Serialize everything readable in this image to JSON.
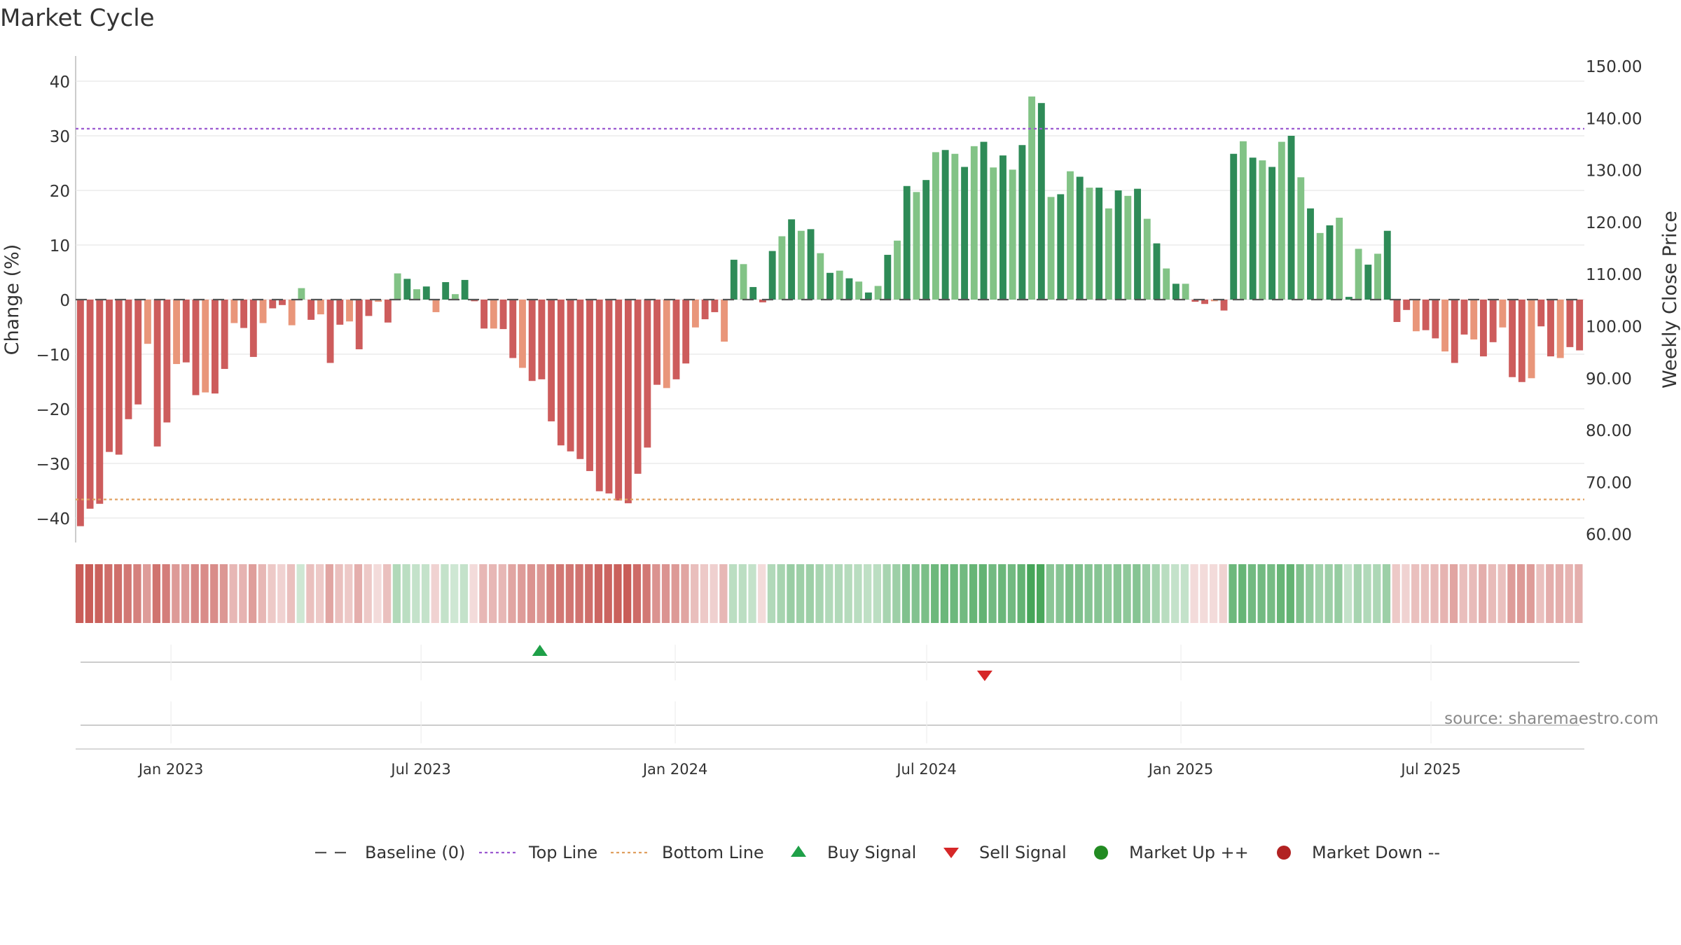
{
  "title": "Market Cycle",
  "source": "source: sharemaestro.com",
  "colors": {
    "top_line": "#9b59d0",
    "bottom_line": "#e0a060",
    "baseline": "#555555",
    "buy": "#1fa048",
    "sell": "#d62728",
    "up_strong": "#2e8b57",
    "up_light": "#82c386",
    "down_strong": "#cd5c5c",
    "down_light": "#e9967a",
    "market_up": "#228b22",
    "market_down": "#b22222"
  },
  "chart_data": {
    "type": "bar",
    "title": "Market Cycle",
    "ylabel": "Change (%)",
    "y2label": "Weekly Close Price",
    "ylim": [
      -45,
      43
    ],
    "y2lim": [
      57.1,
      152.5
    ],
    "yticks": [
      "40",
      "30",
      "20",
      "10",
      "0",
      "−10",
      "−20",
      "−30",
      "−40"
    ],
    "y2ticks": [
      "150.00",
      "140.00",
      "130.00",
      "120.00",
      "110.00",
      "100.00",
      "90.00",
      "80.00",
      "70.00",
      "60.00"
    ],
    "x_start": "2022-10-24",
    "x_end": "2025-10-20",
    "xticks": [
      {
        "label": "Jan 2023",
        "date": "2023-01-01"
      },
      {
        "label": "Jul 2023",
        "date": "2023-07-01"
      },
      {
        "label": "Jan 2024",
        "date": "2024-01-01"
      },
      {
        "label": "Jul 2024",
        "date": "2024-07-01"
      },
      {
        "label": "Jan 2025",
        "date": "2025-01-01"
      },
      {
        "label": "Jul 2025",
        "date": "2025-07-01"
      }
    ],
    "top_line": 31.3,
    "bottom_line": -36.6,
    "grid": true,
    "legend_position": "bottom-center",
    "values": [
      -41.5,
      -38.3,
      -37.4,
      -27.9,
      -28.4,
      -21.9,
      -19.2,
      -8.1,
      -26.9,
      -22.5,
      -11.8,
      -11.5,
      -17.5,
      -17.0,
      -17.2,
      -12.7,
      -4.3,
      -5.2,
      -10.5,
      -4.3,
      -1.6,
      -1.0,
      -4.7,
      2.1,
      -3.7,
      -2.7,
      -11.6,
      -4.6,
      -4.0,
      -9.1,
      -3.0,
      -0.4,
      -4.2,
      4.8,
      3.8,
      1.9,
      2.4,
      -2.3,
      3.2,
      1.0,
      3.6,
      -0.3,
      -5.3,
      -5.3,
      -5.4,
      -10.7,
      -12.5,
      -14.9,
      -14.6,
      -22.3,
      -26.7,
      -27.8,
      -29.2,
      -31.4,
      -35.1,
      -35.5,
      -36.8,
      -37.3,
      -31.9,
      -27.1,
      -15.6,
      -16.2,
      -14.6,
      -11.7,
      -5.1,
      -3.6,
      -2.3,
      -7.7,
      7.3,
      6.5,
      2.3,
      -0.5,
      8.9,
      11.6,
      14.7,
      12.6,
      12.9,
      8.5,
      4.9,
      5.3,
      3.9,
      3.3,
      1.3,
      2.5,
      8.2,
      10.8,
      20.8,
      19.7,
      21.9,
      27.0,
      27.4,
      26.7,
      24.3,
      28.1,
      28.9,
      24.2,
      26.4,
      23.8,
      28.3,
      37.2,
      36.0,
      18.8,
      19.3,
      23.5,
      22.5,
      20.5,
      20.5,
      16.7,
      20.0,
      19.0,
      20.3,
      14.8,
      10.3,
      5.7,
      2.9,
      2.9,
      -0.4,
      -0.8,
      -0.3,
      -2.0,
      26.7,
      29.0,
      26.0,
      25.5,
      24.3,
      28.9,
      30.0,
      22.4,
      16.7,
      12.2,
      13.6,
      15.0,
      0.5,
      9.3,
      6.4,
      8.4,
      12.6,
      -4.1,
      -1.9,
      -5.8,
      -5.6,
      -7.1,
      -9.5,
      -11.6,
      -6.4,
      -7.3,
      -10.4,
      -7.8,
      -5.1,
      -14.2,
      -15.1,
      -14.4,
      -4.9,
      -10.4,
      -10.7,
      -8.7,
      -9.3
    ],
    "heat": [
      0.9,
      0.9,
      0.88,
      0.8,
      0.8,
      0.75,
      0.7,
      0.55,
      0.78,
      0.72,
      0.56,
      0.56,
      0.66,
      0.64,
      0.64,
      0.58,
      0.4,
      0.42,
      0.54,
      0.4,
      0.3,
      0.25,
      0.35,
      0.25,
      0.35,
      0.3,
      0.5,
      0.35,
      0.3,
      0.45,
      0.3,
      0.2,
      0.35,
      0.4,
      0.35,
      0.3,
      0.3,
      0.25,
      0.3,
      0.25,
      0.3,
      0.2,
      0.4,
      0.4,
      0.4,
      0.5,
      0.55,
      0.6,
      0.58,
      0.7,
      0.75,
      0.76,
      0.78,
      0.8,
      0.85,
      0.86,
      0.88,
      0.9,
      0.82,
      0.75,
      0.6,
      0.6,
      0.56,
      0.5,
      0.36,
      0.3,
      0.26,
      0.4,
      0.35,
      0.35,
      0.3,
      0.2,
      0.4,
      0.45,
      0.52,
      0.5,
      0.5,
      0.45,
      0.4,
      0.4,
      0.38,
      0.36,
      0.33,
      0.35,
      0.45,
      0.5,
      0.65,
      0.64,
      0.68,
      0.75,
      0.76,
      0.75,
      0.72,
      0.78,
      0.8,
      0.72,
      0.76,
      0.72,
      0.8,
      0.95,
      0.93,
      0.6,
      0.62,
      0.68,
      0.66,
      0.62,
      0.62,
      0.56,
      0.6,
      0.58,
      0.62,
      0.52,
      0.45,
      0.36,
      0.3,
      0.3,
      0.2,
      0.2,
      0.2,
      0.25,
      0.75,
      0.78,
      0.72,
      0.72,
      0.7,
      0.78,
      0.8,
      0.66,
      0.56,
      0.48,
      0.5,
      0.54,
      0.3,
      0.45,
      0.4,
      0.42,
      0.5,
      0.3,
      0.25,
      0.35,
      0.35,
      0.38,
      0.42,
      0.5,
      0.36,
      0.38,
      0.45,
      0.38,
      0.35,
      0.55,
      0.56,
      0.55,
      0.35,
      0.45,
      0.45,
      0.42,
      0.45
    ],
    "signals": [
      {
        "type": "buy",
        "date": "2023-09-25",
        "value": 3.5
      },
      {
        "type": "sell",
        "date": "2024-08-12",
        "value": -3.5
      }
    ]
  },
  "legend": [
    {
      "key": "baseline",
      "label": "Baseline (0)"
    },
    {
      "key": "top",
      "label": "Top Line"
    },
    {
      "key": "bottom",
      "label": "Bottom Line"
    },
    {
      "key": "buy",
      "label": "Buy Signal"
    },
    {
      "key": "sell",
      "label": "Sell Signal"
    },
    {
      "key": "up",
      "label": "Market Up ++"
    },
    {
      "key": "down",
      "label": "Market Down --"
    }
  ]
}
